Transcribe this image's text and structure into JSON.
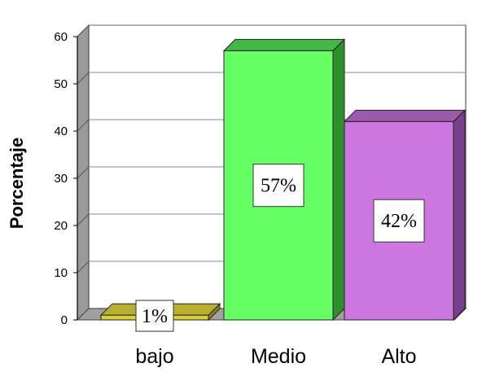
{
  "chart_data": {
    "type": "bar",
    "title": "",
    "xlabel": "",
    "ylabel": "Porcentaje",
    "ylim": [
      0,
      60
    ],
    "yticks": [
      0,
      10,
      20,
      30,
      40,
      50,
      60
    ],
    "categories": [
      "bajo",
      "Medio",
      "Alto"
    ],
    "values": [
      1,
      57,
      42
    ],
    "data_labels": [
      "1%",
      "57%",
      "42%"
    ],
    "colors": {
      "bajo": {
        "front": "#d8d040",
        "top": "#b8b030",
        "side": "#8a8418"
      },
      "Medio": {
        "front": "#66ff66",
        "top": "#44b844",
        "side": "#2f8f2f"
      },
      "Alto": {
        "front": "#cc77e0",
        "top": "#9a5aaa",
        "side": "#7a3f8c"
      }
    },
    "grid": true,
    "style": "3d"
  }
}
